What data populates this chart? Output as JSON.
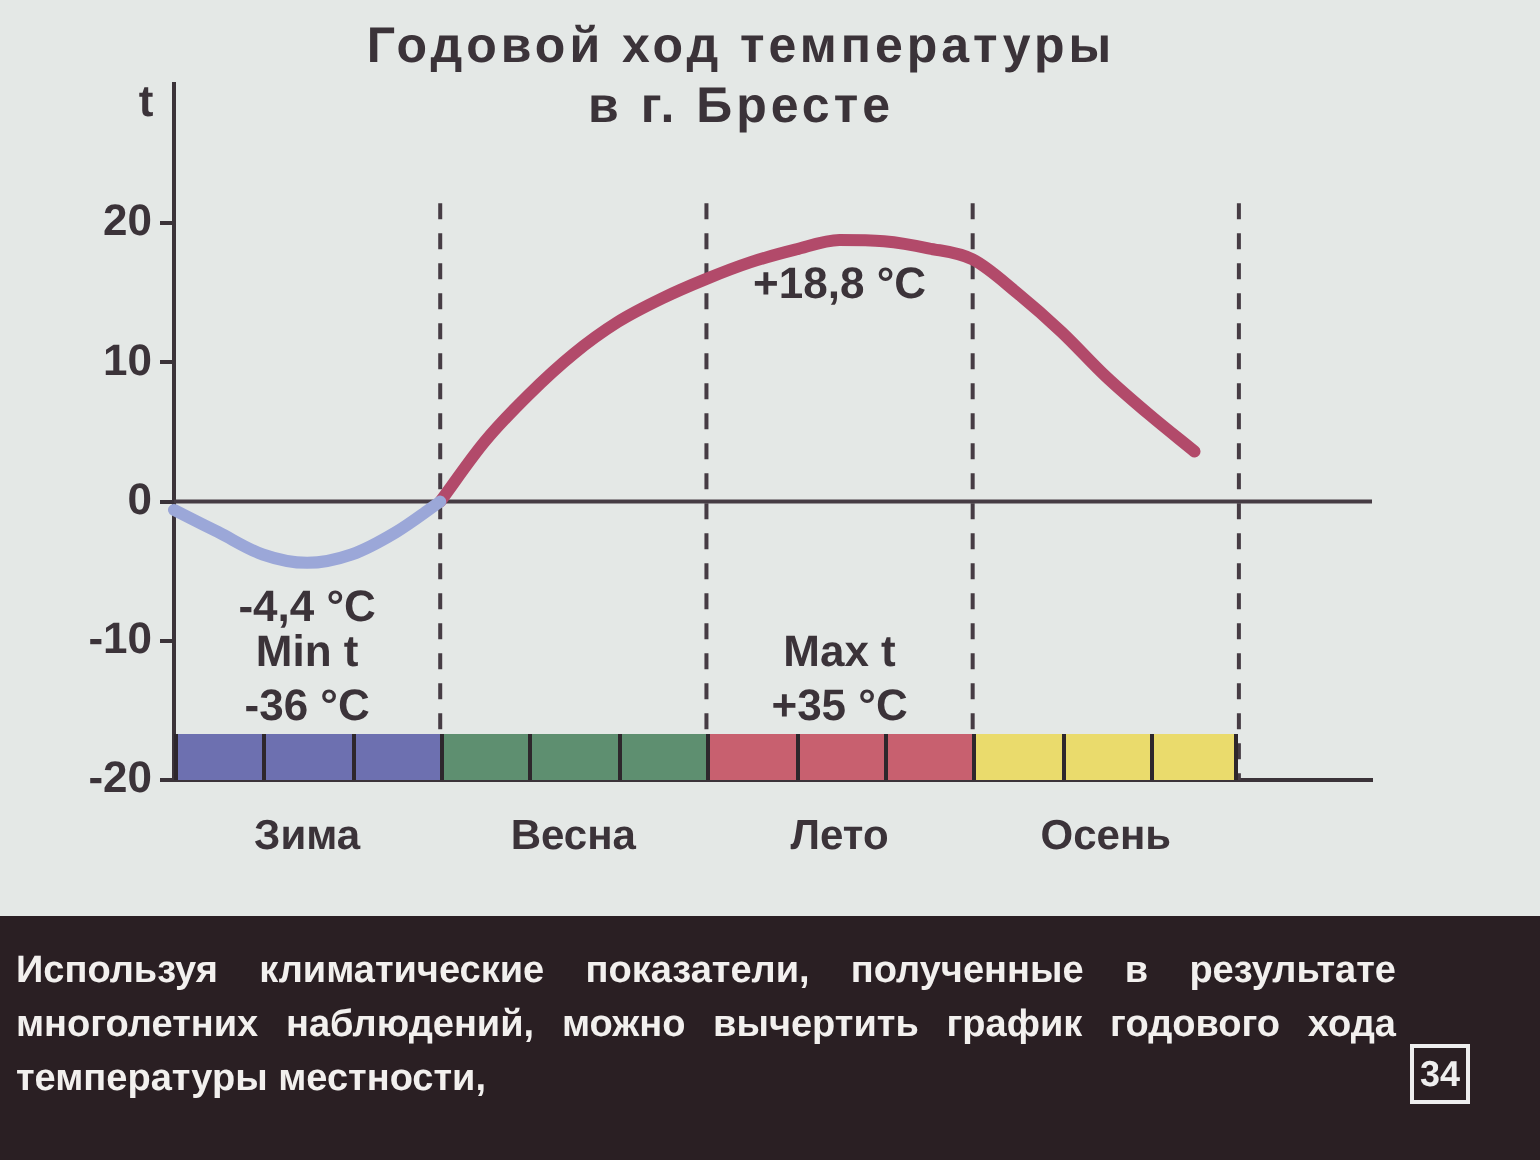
{
  "chart_data": {
    "type": "line",
    "title": "Годовой ход температуры в г. Бресте",
    "ylabel": "t",
    "categories": [
      null,
      null,
      null,
      "Зима",
      null,
      null,
      null,
      null,
      null,
      "Весна",
      null,
      null,
      null,
      null,
      null,
      "Лето",
      null,
      null,
      null,
      null,
      null,
      "Осень",
      null,
      null,
      null,
      null,
      null,
      null
    ],
    "ylim": [
      -20,
      30
    ],
    "yticks": [
      -20,
      -10,
      0,
      10,
      20
    ],
    "grid": "x",
    "series": [
      {
        "color": "#9ba7d8",
        "values": [
          -0.6,
          -2.2,
          -3.8,
          -4.4,
          -3.8,
          -2.2,
          0,
          null,
          null,
          null,
          null,
          null,
          null,
          null,
          null,
          null,
          null,
          null,
          null,
          null,
          null,
          null,
          null,
          null,
          null,
          null,
          null,
          null
        ]
      },
      {
        "color": "#b24a6a",
        "values": [
          null,
          null,
          null,
          null,
          null,
          null,
          0,
          4.3,
          7.7,
          10.6,
          12.9,
          14.6,
          16.0,
          17.2,
          18.1,
          18.8,
          18.7,
          18.2,
          17.4,
          15.0,
          12.2,
          9.0,
          6.2,
          3.6,
          null,
          null,
          null,
          null
        ]
      }
    ],
    "ref_lines": [
      {
        "axis": "y",
        "value": 0,
        "color": "#463c44"
      }
    ],
    "annotations": [
      {
        "text": "-4,4 °C",
        "x": "Зима",
        "y": -4.4
      },
      "Min t\n-36 °C",
      {
        "text": "+18,8 °C",
        "x": "Лето",
        "y": 18.8
      },
      "Max t\n+35 °C",
      "Используя климатические показатели, полученные в результате многолетних наблюдений, можно вычертить график годового хода температуры местности,",
      "34"
    ]
  }
}
